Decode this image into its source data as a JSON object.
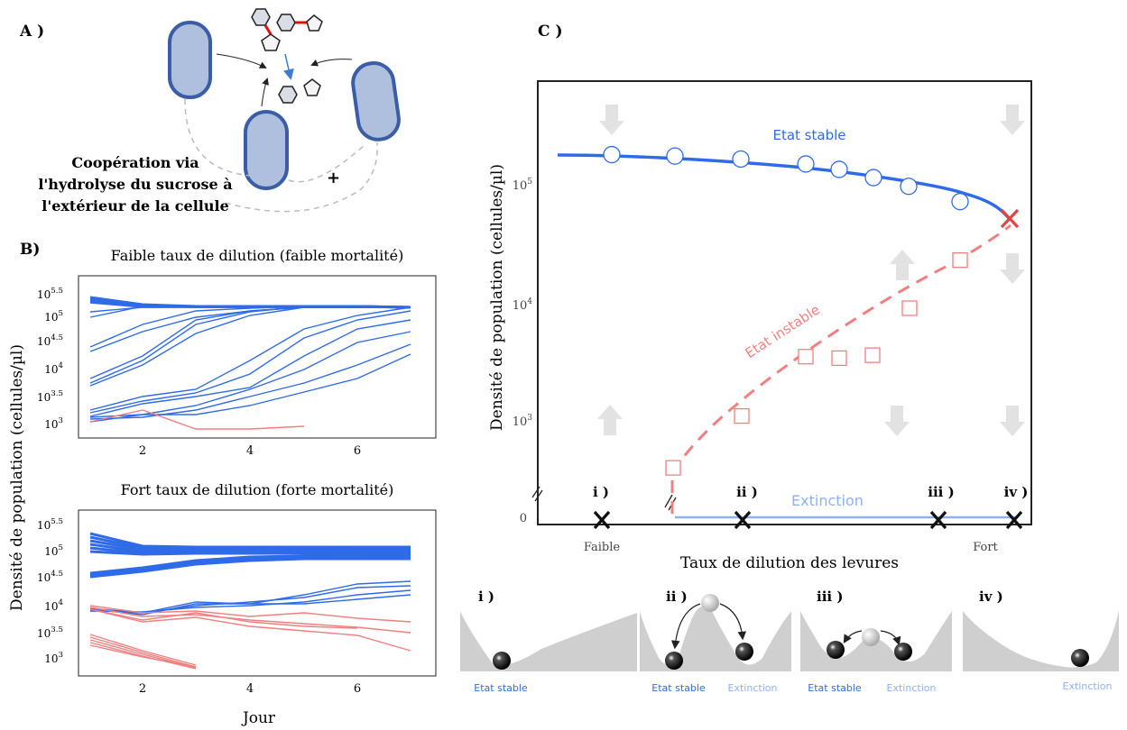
{
  "panelA": {
    "label": "A )",
    "caption": [
      "Coopération via",
      "l'hydrolyse du sucrose à",
      "l'extérieur de la cellule"
    ],
    "plus": "+"
  },
  "panelB": {
    "label": "B)",
    "ylabel": "Densité de population (cellules/µl)",
    "xlabel": "Jour",
    "plots": [
      {
        "title": "Faible taux de dilution (faible mortalité)",
        "yticks": [
          "10^5.5",
          "10^5",
          "10^4.5",
          "10^4",
          "10^3.5",
          "10^3"
        ],
        "xticks": [
          "2",
          "4",
          "6"
        ]
      },
      {
        "title": "Fort taux de dilution (forte mortalité)",
        "yticks": [
          "10^5.5",
          "10^5",
          "10^4.5",
          "10^4",
          "10^3.5",
          "10^3"
        ],
        "xticks": [
          "2",
          "4",
          "6"
        ]
      }
    ]
  },
  "panelC": {
    "label": "C )",
    "ylabel": "Densité de population (cellules/µl)",
    "xlabel": "Taux de dilution des levures",
    "yticks": [
      "10^5",
      "10^4",
      "10^3",
      "0"
    ],
    "xticks": [
      "Faible",
      "Fort"
    ],
    "stable_label": "Etat stable",
    "unstable_label": "Etat instable",
    "extinction_label": "Extinction",
    "markers": [
      "i )",
      "ii )",
      "iii )",
      "iv )"
    ],
    "stable_color": "#2f6be8",
    "unstable_color": "#f08080",
    "extinction_color": "#8fb0f2"
  },
  "chart_data": [
    {
      "type": "scatter",
      "title": "",
      "xlabel": "Taux de dilution des levures",
      "ylabel": "Densité de population (cellules/µl)",
      "yscale": "log",
      "series": [
        {
          "name": "Etat stable",
          "x": [
            1,
            2,
            3,
            4,
            5,
            6,
            7,
            8,
            9
          ],
          "y": [
            180000,
            175000,
            165000,
            150000,
            135000,
            115000,
            97000,
            72000,
            50000
          ]
        },
        {
          "name": "Etat instable",
          "x": [
            1.5,
            3,
            4,
            5,
            6,
            7,
            8,
            9
          ],
          "y": [
            400,
            1100,
            3500,
            3400,
            3600,
            9000,
            23000,
            50000
          ]
        }
      ]
    }
  ],
  "wells": [
    {
      "label": "i )",
      "captions": [
        "Etat stable"
      ]
    },
    {
      "label": "ii )",
      "captions": [
        "Etat stable",
        "Extinction"
      ]
    },
    {
      "label": "iii )",
      "captions": [
        "Etat stable",
        "Extinction"
      ]
    },
    {
      "label": "iv )",
      "captions": [
        "Extinction"
      ]
    }
  ]
}
